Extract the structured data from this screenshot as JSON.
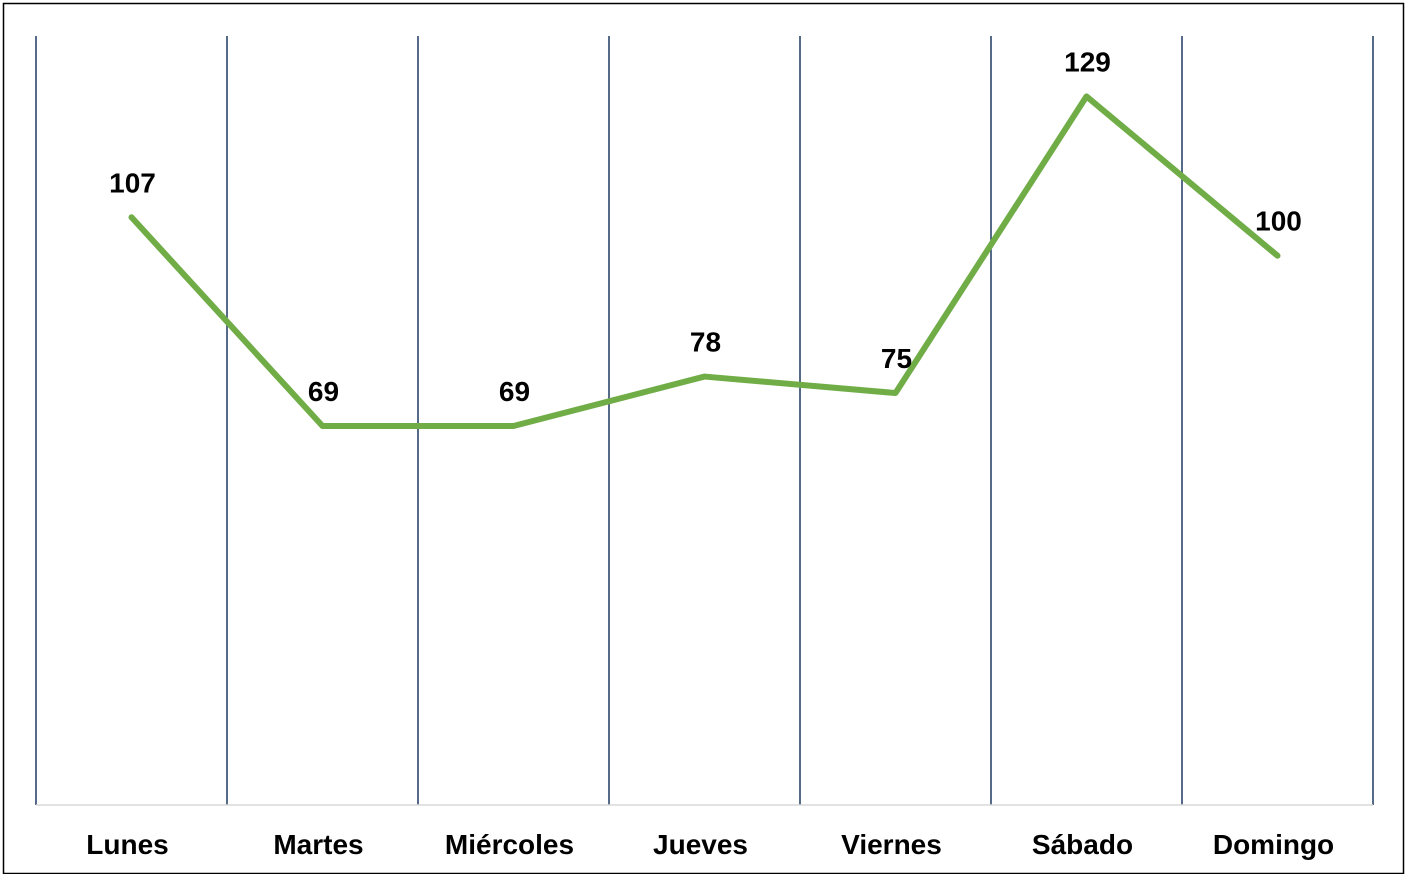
{
  "chart_data": {
    "type": "line",
    "categories": [
      "Lunes",
      "Martes",
      "Miércoles",
      "Jueves",
      "Viernes",
      "Sábado",
      "Domingo"
    ],
    "series": [
      {
        "color": "#70ad47",
        "values": [
          107,
          69,
          69,
          78,
          75,
          129,
          100
        ]
      }
    ],
    "ylim": [
      0,
      140
    ]
  }
}
